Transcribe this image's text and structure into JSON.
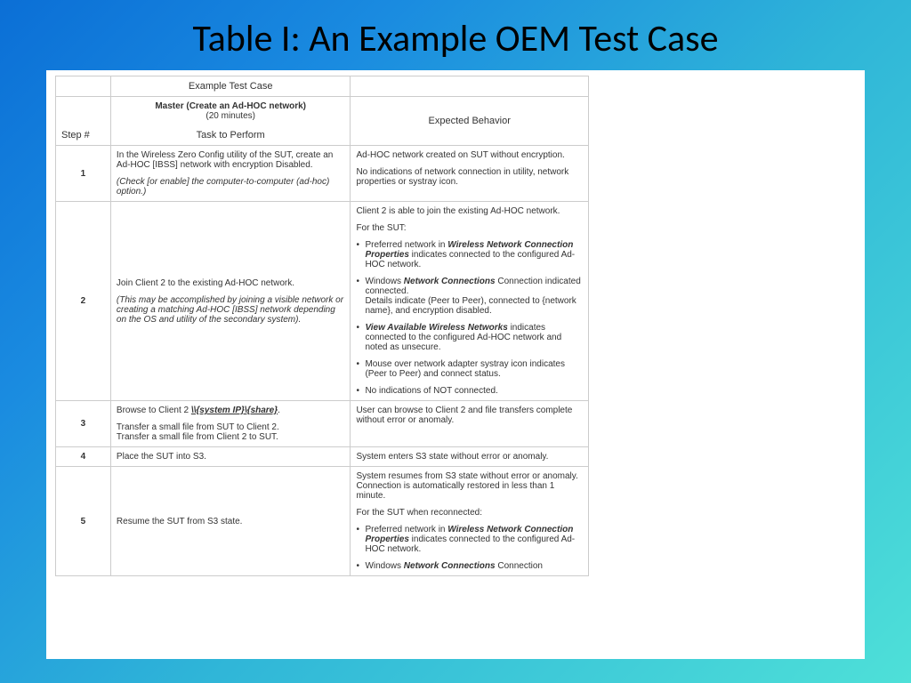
{
  "slide": {
    "title": "Table I: An Example OEM Test Case",
    "background_gradient": [
      "#0b6fd6",
      "#4ee0d8"
    ],
    "content_bg": "#ffffff"
  },
  "table": {
    "border_color": "#cccccc",
    "font_family": "Verdana",
    "font_size_pt": 7,
    "text_color": "#333333",
    "header": {
      "example_title": "Example Test Case",
      "step_label": "Step #",
      "master_line": "Master (Create an Ad-HOC network)",
      "minutes_line": "(20 minutes)",
      "task_label": "Task to Perform",
      "expected_label": "Expected Behavior"
    },
    "rows": [
      {
        "step": "1",
        "task_p1": "In the Wireless Zero Config utility of the SUT, create an Ad-HOC [IBSS] network with encryption Disabled.",
        "task_p2": "(Check [or enable] the computer-to-computer (ad-hoc) option.)",
        "exp_p1": "Ad-HOC network created on SUT without encryption.",
        "exp_p2": "No indications of network connection in utility, network properties or systray icon."
      },
      {
        "step": "2",
        "task_p1": "Join Client 2 to the existing Ad-HOC network.",
        "task_p2": "(This may be accomplished by joining a visible network or creating a matching Ad-HOC [IBSS] network depending on the OS and utility of the secondary system).",
        "exp_intro1": "Client 2 is able to join the existing Ad-HOC network.",
        "exp_intro2": "For the SUT:",
        "exp_b1a": "Preferred network in ",
        "exp_b1b": "Wireless Network Connection Properties",
        "exp_b1c": " indicates connected to the configured Ad-HOC network.",
        "exp_b2a": "Windows ",
        "exp_b2b": "Network Connections",
        "exp_b2c": " Connection indicated connected.",
        "exp_b2d": "Details indicate (Peer to Peer), connected to {network name}, and encryption disabled.",
        "exp_b3a": "View Available Wireless Networks",
        "exp_b3b": " indicates connected to the configured Ad-HOC network and noted as unsecure.",
        "exp_b4": "Mouse over network adapter systray icon indicates (Peer to Peer) and connect status.",
        "exp_b5": "No indications of NOT connected."
      },
      {
        "step": "3",
        "task_p1a": "Browse to Client 2 ",
        "task_p1b": "\\\\{system IP}\\{share}",
        "task_p1c": ".",
        "task_p2": "Transfer a small file from SUT to Client 2.",
        "task_p3": "Transfer a small file from Client 2 to SUT.",
        "exp_p1": "User can browse to Client 2 and file transfers complete without error or anomaly."
      },
      {
        "step": "4",
        "task_p1": "Place the SUT into S3.",
        "exp_p1": "System enters S3 state without error or anomaly."
      },
      {
        "step": "5",
        "task_p1": "Resume the SUT from S3 state.",
        "exp_p1": "System resumes from S3 state without error or anomaly.",
        "exp_p2": "Connection is automatically restored in less than 1 minute.",
        "exp_p3": "For the SUT when reconnected:",
        "exp_b1a": "Preferred network in ",
        "exp_b1b": "Wireless Network Connection Properties",
        "exp_b1c": " indicates connected to the configured Ad-HOC network.",
        "exp_b2a": "Windows ",
        "exp_b2b": "Network Connections",
        "exp_b2c": " Connection"
      }
    ]
  }
}
